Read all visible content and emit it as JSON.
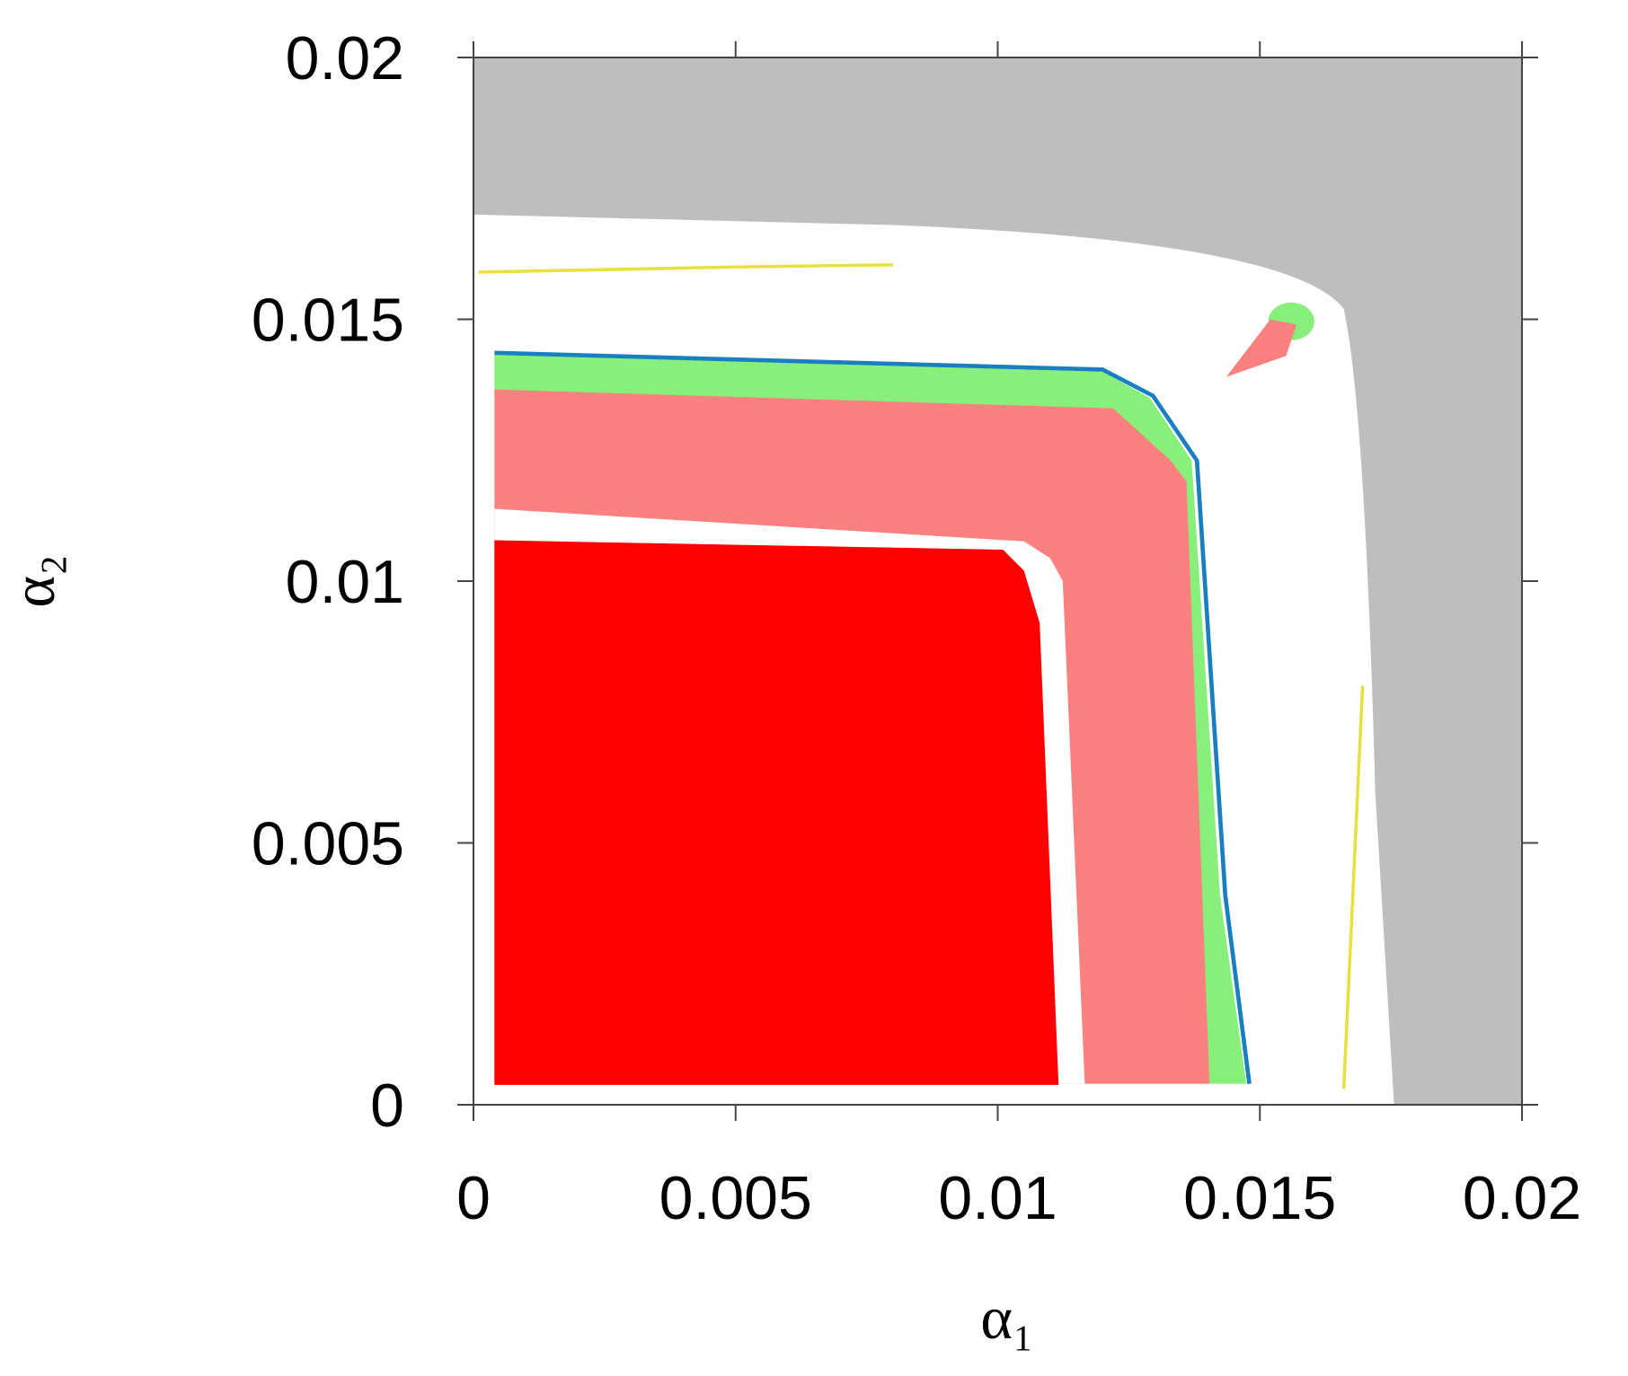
{
  "chart_data": {
    "type": "region",
    "xlabel": "α₁",
    "ylabel": "α₂",
    "xlim": [
      0,
      0.02
    ],
    "ylim": [
      0,
      0.02
    ],
    "xticks": [
      0,
      0.005,
      0.01,
      0.015,
      0.02
    ],
    "yticks": [
      0,
      0.005,
      0.01,
      0.015,
      0.02
    ]
  }
}
